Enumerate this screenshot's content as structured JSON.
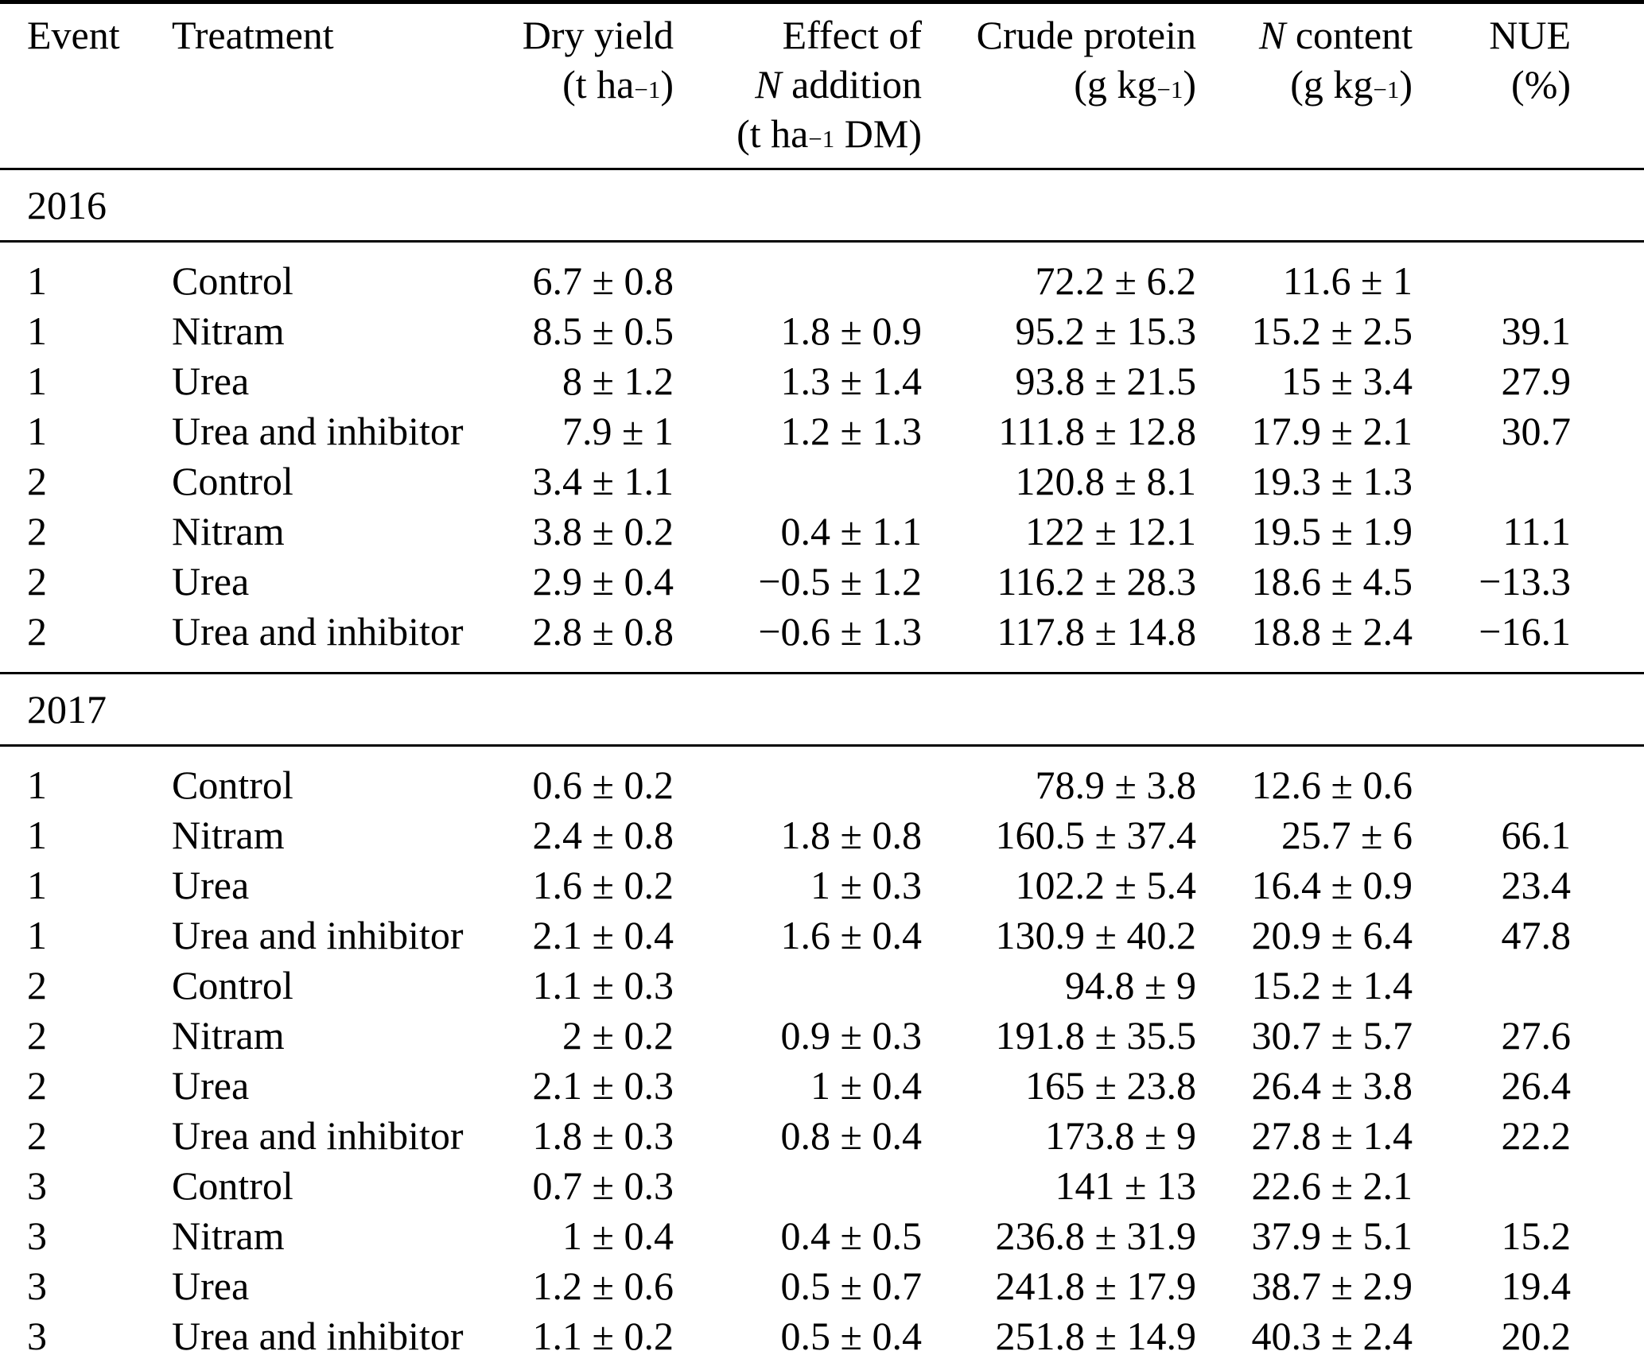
{
  "colors": {
    "text": "#000000",
    "background": "#ffffff",
    "rule": "#000000"
  },
  "table": {
    "header": [
      {
        "id": "event",
        "lines": [
          [
            {
              "t": "Event"
            }
          ]
        ]
      },
      {
        "id": "treatment",
        "lines": [
          [
            {
              "t": "Treatment"
            }
          ]
        ]
      },
      {
        "id": "dry-yield",
        "lines": [
          [
            {
              "t": "Dry yield"
            }
          ],
          [
            {
              "t": "(t ha"
            },
            {
              "t": "−1",
              "sup": true
            },
            {
              "t": ")"
            }
          ]
        ]
      },
      {
        "id": "effect-of-n-addition",
        "lines": [
          [
            {
              "t": "Effect of"
            }
          ],
          [
            {
              "t": "N",
              "i": true
            },
            {
              "t": " addition"
            }
          ],
          [
            {
              "t": "(t ha"
            },
            {
              "t": "−1",
              "sup": true
            },
            {
              "t": " DM)"
            }
          ]
        ]
      },
      {
        "id": "crude-protein",
        "lines": [
          [
            {
              "t": "Crude protein"
            }
          ],
          [
            {
              "t": "(g kg"
            },
            {
              "t": "−1",
              "sup": true
            },
            {
              "t": ")"
            }
          ]
        ]
      },
      {
        "id": "n-content",
        "lines": [
          [
            {
              "t": "N",
              "i": true
            },
            {
              "t": " content"
            }
          ],
          [
            {
              "t": "(g kg"
            },
            {
              "t": "−1",
              "sup": true
            },
            {
              "t": ")"
            }
          ]
        ]
      },
      {
        "id": "nue",
        "lines": [
          [
            {
              "t": "NUE"
            }
          ],
          [
            {
              "t": "(%)"
            }
          ]
        ]
      }
    ],
    "sections": [
      {
        "year": "2016",
        "rows": [
          [
            "1",
            "Control",
            "6.7 ± 0.8",
            "",
            "72.2 ± 6.2",
            "11.6 ± 1",
            ""
          ],
          [
            "1",
            "Nitram",
            "8.5 ± 0.5",
            "1.8 ± 0.9",
            "95.2 ± 15.3",
            "15.2 ± 2.5",
            "39.1"
          ],
          [
            "1",
            "Urea",
            "8 ± 1.2",
            "1.3 ± 1.4",
            "93.8 ± 21.5",
            "15 ± 3.4",
            "27.9"
          ],
          [
            "1",
            "Urea and inhibitor",
            "7.9 ± 1",
            "1.2 ± 1.3",
            "111.8 ± 12.8",
            "17.9 ± 2.1",
            "30.7"
          ],
          [
            "2",
            "Control",
            "3.4 ± 1.1",
            "",
            "120.8 ± 8.1",
            "19.3 ± 1.3",
            ""
          ],
          [
            "2",
            "Nitram",
            "3.8 ± 0.2",
            "0.4 ± 1.1",
            "122 ± 12.1",
            "19.5 ± 1.9",
            "11.1"
          ],
          [
            "2",
            "Urea",
            "2.9 ± 0.4",
            "−0.5 ± 1.2",
            "116.2 ± 28.3",
            "18.6 ± 4.5",
            "−13.3"
          ],
          [
            "2",
            "Urea and inhibitor",
            "2.8 ± 0.8",
            "−0.6 ± 1.3",
            "117.8 ± 14.8",
            "18.8 ± 2.4",
            "−16.1"
          ]
        ]
      },
      {
        "year": "2017",
        "rows": [
          [
            "1",
            "Control",
            "0.6 ± 0.2",
            "",
            "78.9 ± 3.8",
            "12.6 ± 0.6",
            ""
          ],
          [
            "1",
            "Nitram",
            "2.4 ± 0.8",
            "1.8 ± 0.8",
            "160.5 ± 37.4",
            "25.7 ± 6",
            "66.1"
          ],
          [
            "1",
            "Urea",
            "1.6 ± 0.2",
            "1 ± 0.3",
            "102.2 ± 5.4",
            "16.4 ± 0.9",
            "23.4"
          ],
          [
            "1",
            "Urea and inhibitor",
            "2.1 ± 0.4",
            "1.6 ± 0.4",
            "130.9 ± 40.2",
            "20.9 ± 6.4",
            "47.8"
          ],
          [
            "2",
            "Control",
            "1.1 ± 0.3",
            "",
            "94.8 ± 9",
            "15.2 ± 1.4",
            ""
          ],
          [
            "2",
            "Nitram",
            "2 ± 0.2",
            "0.9 ± 0.3",
            "191.8 ± 35.5",
            "30.7 ± 5.7",
            "27.6"
          ],
          [
            "2",
            "Urea",
            "2.1 ± 0.3",
            "1 ± 0.4",
            "165 ± 23.8",
            "26.4 ± 3.8",
            "26.4"
          ],
          [
            "2",
            "Urea and inhibitor",
            "1.8 ± 0.3",
            "0.8 ± 0.4",
            "173.8 ± 9",
            "27.8 ± 1.4",
            "22.2"
          ],
          [
            "3",
            "Control",
            "0.7 ± 0.3",
            "",
            "141 ± 13",
            "22.6 ± 2.1",
            ""
          ],
          [
            "3",
            "Nitram",
            "1 ± 0.4",
            "0.4 ± 0.5",
            "236.8 ± 31.9",
            "37.9 ± 5.1",
            "15.2"
          ],
          [
            "3",
            "Urea",
            "1.2 ± 0.6",
            "0.5 ± 0.7",
            "241.8 ± 17.9",
            "38.7 ± 2.9",
            "19.4"
          ],
          [
            "3",
            "Urea and inhibitor",
            "1.1 ± 0.2",
            "0.5 ± 0.4",
            "251.8 ± 14.9",
            "40.3 ± 2.4",
            "20.2"
          ]
        ]
      }
    ]
  }
}
